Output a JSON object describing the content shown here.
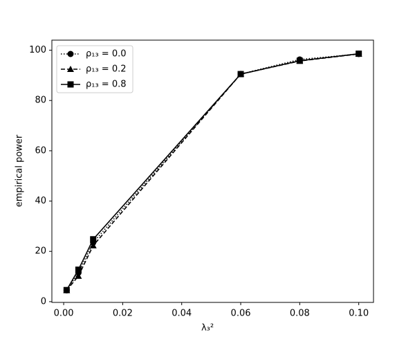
{
  "chart_data": {
    "type": "line",
    "xlabel": "λ₃²",
    "ylabel": "empirical power",
    "x": [
      0.001,
      0.005,
      0.01,
      0.06,
      0.08,
      0.1
    ],
    "series": [
      {
        "name": "ρ₁₃ = 0.0",
        "color": "#000000",
        "linestyle": "dotted",
        "marker": "circle",
        "values": [
          4.5,
          11.5,
          23.5,
          90.5,
          96.3,
          98.5
        ]
      },
      {
        "name": "ρ₁₃ = 0.2",
        "color": "#000000",
        "linestyle": "dashed",
        "marker": "triangle",
        "values": [
          4.5,
          10.2,
          22.3,
          90.5,
          95.7,
          98.5
        ]
      },
      {
        "name": "ρ₁₃ = 0.8",
        "color": "#000000",
        "linestyle": "solid",
        "marker": "square",
        "values": [
          4.6,
          12.7,
          24.8,
          90.5,
          95.8,
          98.6
        ]
      }
    ],
    "xlim": [
      -0.004,
      0.105
    ],
    "ylim": [
      -0.3,
      104
    ],
    "xticks": [
      {
        "value": 0,
        "label": "0.00"
      },
      0.02,
      0.04,
      0.06,
      0.08,
      {
        "value": 0.1,
        "label": "0.10"
      }
    ],
    "yticks": [
      0,
      20,
      40,
      60,
      80,
      100
    ],
    "legend": "upper left",
    "grid": false
  }
}
